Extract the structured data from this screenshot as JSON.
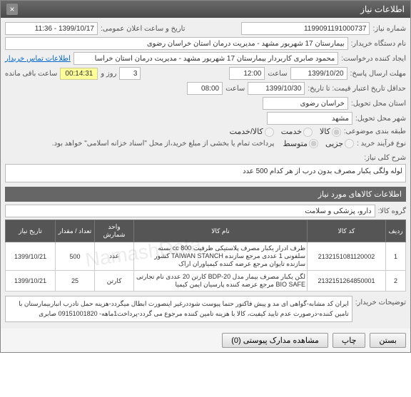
{
  "window": {
    "title": "اطلاعات نیاز"
  },
  "header": {
    "need_no_label": "شماره نیاز:",
    "need_no": "1199091191000737",
    "announce_label": "تاریخ و ساعت اعلان عمومی:",
    "announce_value": "1399/10/17 - 11:36",
    "buyer_org_label": "نام دستگاه خریدار:",
    "buyer_org": "بیمارستان 17 شهریور مشهد - مدیریت درمان استان خراسان رضوی",
    "creator_label": "ایجاد کننده درخواست:",
    "creator": "محمود صابری کاربردار بیمارستان 17 شهریور مشهد - مدیریت درمان استان خراسا",
    "contact_link": "اطلاعات تماس خریدار",
    "deadline_send_label": "مهلت ارسال پاسخ:",
    "deadline_send_date": "1399/10/20",
    "time_label": "ساعت",
    "deadline_send_time": "12:00",
    "days": "3",
    "days_label": "روز و",
    "timer": "00:14:31",
    "remain_label": "ساعت باقی مانده",
    "min_valid_label": "حداقل تاریخ اعتبار قیمت: تا تاریخ:",
    "min_valid_date": "1399/10/30",
    "min_valid_time": "08:00",
    "delivery_prov_label": "استان محل تحویل:",
    "delivery_prov": "خراسان رضوی",
    "delivery_city_label": "شهر محل تحویل:",
    "delivery_city": "مشهد",
    "category_label": "طبقه بندی موضوعی:",
    "cat_goods": "کالا",
    "cat_service": "خدمت",
    "cat_goods_service": "کالا/خدمت",
    "process_type_label": "نوع فرآیند خرید :",
    "proc_small": "جزیی",
    "proc_medium": "متوسط",
    "note": "پرداخت تمام یا بخشی از مبلغ خرید،از محل \"اسناد خزانه اسلامی\" خواهد بود."
  },
  "need": {
    "title_label": "شرح کلی نیاز:",
    "title": "لوله ولگی یکبار مصرف بدون درب از هر کدام 500 عدد"
  },
  "goods": {
    "section": "اطلاعات کالاهای مورد نیاز",
    "group_label": "گروه کالا:",
    "group": "دارو، پزشکی و سلامت",
    "cols": {
      "row": "ردیف",
      "code": "کد کالا",
      "name": "نام کالا",
      "unit": "واحد شمارش",
      "qty": "تعداد / مقدار",
      "date": "تاریخ نیاز"
    },
    "rows": [
      {
        "n": "1",
        "code": "2132151081120002",
        "name": "ظرف ادرار یکبار مصرف پلاستیکی ظرفیت 800 cc بسته سلفونی 1 عددی مرجع سازنده TAIWAN STANCH کشور سازنده تایوان مرجع عرضه کننده کیمیاوران اراک",
        "unit": "عدد",
        "qty": "500",
        "date": "1399/10/21"
      },
      {
        "n": "2",
        "code": "2132151264850001",
        "name": "لگن یکبار مصرف بیمار مدل BDP-20 کارتن 20 عددی نام تجارتی BIO SAFE مرجع عرضه کننده پارسیان ایمن کیمیا",
        "unit": "کارتن",
        "qty": "25",
        "date": "1399/10/21"
      }
    ]
  },
  "buyer_desc": {
    "label": "توضیحات خریدار:",
    "text": "ایران کد مشابه-گواهی ای مد و پیش فاکتور حتما پیوست شوددرغیر اینصورت ابطال میگردد-هزینه حمل تادرب انباربیمارستان با تامین کننده-درصورت عدم تایید کیفیت، کالا با هزینه تامین کننده مرجوع می گردد-پرداخت1ماهه- 09151001820 صابری"
  },
  "footer": {
    "attachments": "مشاهده مدارک پیوستی (0)",
    "print": "چاپ",
    "close": "بستن"
  }
}
